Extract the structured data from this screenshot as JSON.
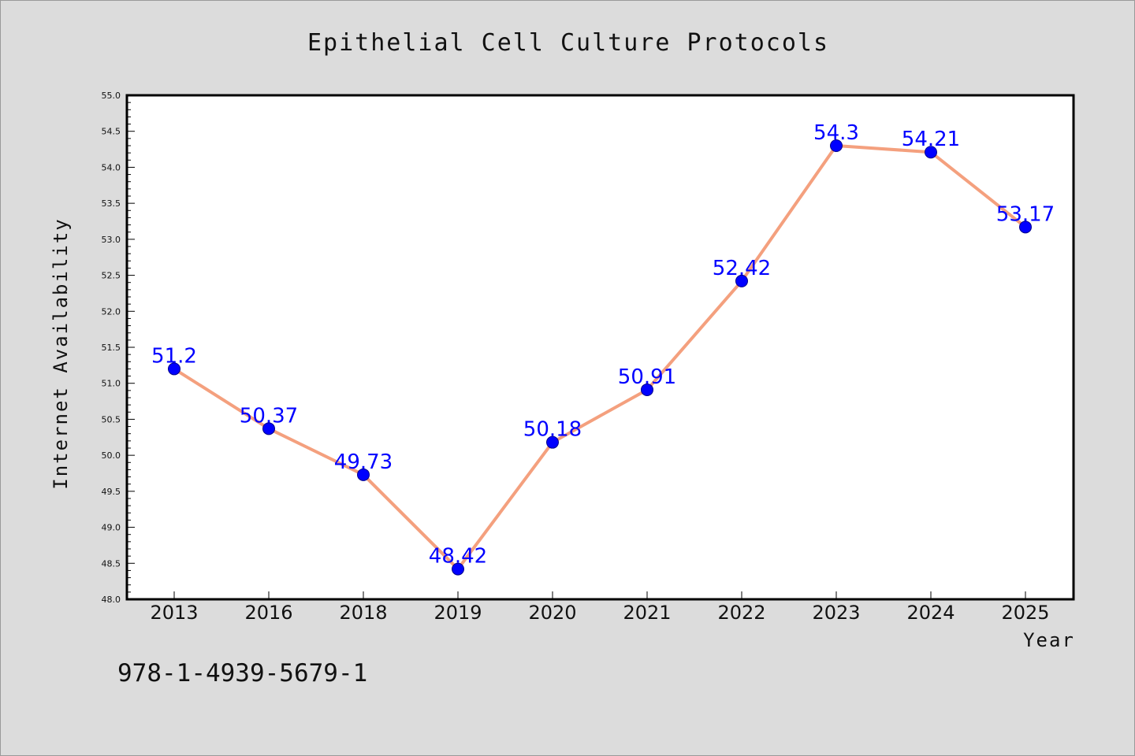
{
  "chart_data": {
    "type": "line",
    "title": "Epithelial Cell Culture Protocols",
    "xlabel": "Year",
    "ylabel": "Internet Availability",
    "categories": [
      "2013",
      "2016",
      "2018",
      "2019",
      "2020",
      "2021",
      "2022",
      "2023",
      "2024",
      "2025"
    ],
    "series": [
      {
        "values": [
          51.2,
          50.37,
          49.73,
          48.42,
          50.18,
          50.91,
          52.42,
          54.3,
          54.21,
          53.17
        ],
        "labels": [
          "51.2",
          "50.37",
          "49.73",
          "48.42",
          "50.18",
          "50.91",
          "52.42",
          "54.3",
          "54.21",
          "53.17"
        ],
        "line_color": "#f4a07e",
        "marker_color": "#0000ff"
      }
    ],
    "ylim": [
      48.0,
      55.0
    ],
    "yticks": [
      "48.0",
      "48.5",
      "49.0",
      "49.5",
      "50.0",
      "50.5",
      "51.0",
      "51.5",
      "52.0",
      "52.5",
      "53.0",
      "53.5",
      "54.0",
      "54.5",
      "55.0"
    ],
    "grid": false,
    "legend": "none",
    "plot_background": "#ffffff",
    "page_background": "#dcdcdc"
  },
  "footer": {
    "identifier": "978-1-4939-5679-1"
  }
}
